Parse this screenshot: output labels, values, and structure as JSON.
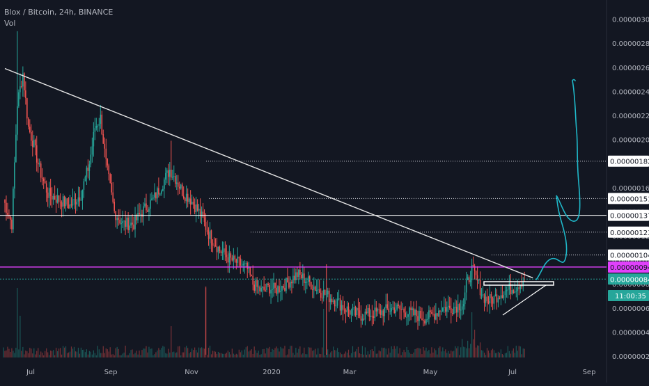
{
  "legend": {
    "symbol": "Blox / Bitcoin, 24h, BINANCE",
    "vol": "Vol"
  },
  "colors": {
    "background": "#131722",
    "up": "#26a69a",
    "down": "#ef5350",
    "trendline": "#e6e6e6",
    "magenta": "#e040fb",
    "teal_line": "#26a69a",
    "drawing": "#1fb8c9",
    "axis_text": "#b2b5be"
  },
  "chart_data": {
    "type": "candlestick",
    "symbol": "Blox / Bitcoin",
    "interval": "24h",
    "exchange": "BINANCE",
    "ylim": [
      1e-07,
      3.1e-06
    ],
    "y_ticks": [
      "0.00000020",
      "0.00000040",
      "0.00000060",
      "0.00000080",
      "0.00000100",
      "0.00000120",
      "0.00000140",
      "0.00000160",
      "0.00000180",
      "0.00000200",
      "0.00000220",
      "0.00000240",
      "0.00000260",
      "0.00000280",
      "0.00000300"
    ],
    "x_ticks": [
      "Jul",
      "Sep",
      "Nov",
      "2020",
      "Mar",
      "May",
      "Jul",
      "Sep"
    ],
    "anchors": [
      [
        0,
        1.5
      ],
      [
        6,
        1.3
      ],
      [
        10,
        2.3
      ],
      [
        14,
        2.55
      ],
      [
        18,
        2.1
      ],
      [
        22,
        1.95
      ],
      [
        26,
        1.75
      ],
      [
        32,
        1.55
      ],
      [
        40,
        1.5
      ],
      [
        48,
        1.45
      ],
      [
        56,
        1.55
      ],
      [
        62,
        1.8
      ],
      [
        66,
        2.1
      ],
      [
        70,
        2.18
      ],
      [
        74,
        1.8
      ],
      [
        80,
        1.4
      ],
      [
        86,
        1.3
      ],
      [
        94,
        1.3
      ],
      [
        100,
        1.4
      ],
      [
        108,
        1.5
      ],
      [
        114,
        1.62
      ],
      [
        120,
        1.75
      ],
      [
        124,
        1.68
      ],
      [
        130,
        1.55
      ],
      [
        134,
        1.52
      ],
      [
        138,
        1.45
      ],
      [
        142,
        1.38
      ],
      [
        148,
        1.22
      ],
      [
        156,
        1.08
      ],
      [
        164,
        1.0
      ],
      [
        170,
        0.97
      ],
      [
        176,
        0.92
      ],
      [
        180,
        0.8
      ],
      [
        186,
        0.74
      ],
      [
        192,
        0.77
      ],
      [
        196,
        0.75
      ],
      [
        204,
        0.8
      ],
      [
        212,
        0.88
      ],
      [
        220,
        0.82
      ],
      [
        226,
        0.76
      ],
      [
        234,
        0.7
      ],
      [
        240,
        0.66
      ],
      [
        246,
        0.6
      ],
      [
        252,
        0.56
      ],
      [
        258,
        0.54
      ],
      [
        264,
        0.55
      ],
      [
        270,
        0.56
      ],
      [
        276,
        0.58
      ],
      [
        282,
        0.6
      ],
      [
        288,
        0.58
      ],
      [
        292,
        0.56
      ],
      [
        298,
        0.54
      ],
      [
        304,
        0.52
      ],
      [
        308,
        0.53
      ],
      [
        312,
        0.56
      ],
      [
        316,
        0.6
      ],
      [
        322,
        0.6
      ],
      [
        328,
        0.62
      ],
      [
        332,
        0.64
      ],
      [
        334,
        0.78
      ],
      [
        338,
        0.92
      ],
      [
        342,
        0.82
      ],
      [
        346,
        0.7
      ],
      [
        350,
        0.66
      ],
      [
        354,
        0.68
      ],
      [
        358,
        0.72
      ],
      [
        362,
        0.74
      ],
      [
        366,
        0.76
      ],
      [
        370,
        0.78
      ],
      [
        374,
        0.82
      ],
      [
        376,
        0.84
      ]
    ],
    "spikes": [
      [
        10,
        2.9
      ],
      [
        12,
        2.55
      ],
      [
        66,
        2.18
      ],
      [
        121,
        1.99
      ],
      [
        124,
        1.72
      ],
      [
        338,
        1.01
      ]
    ],
    "horizontal_levels": [
      {
        "value": 1.82e-06,
        "label": "0.00000182",
        "style": "dotted"
      },
      {
        "value": 1.51e-06,
        "label": "0.00000151",
        "style": "dotted"
      },
      {
        "value": 1.37e-06,
        "label": "0.00000137",
        "style": "solid"
      },
      {
        "value": 1.23e-06,
        "label": "0.00000123",
        "style": "dotted"
      },
      {
        "value": 1.04e-06,
        "label": "0.00000104",
        "style": "dotted"
      },
      {
        "value": 9.4e-07,
        "label": "0.00000094",
        "style": "magenta"
      },
      {
        "value": 8.4e-07,
        "label": "0.00000084",
        "style": "teal"
      }
    ],
    "countdown": "11:00:35",
    "trendlines": [
      {
        "from": [
          1,
          2.59
        ],
        "to": [
          382,
          0.85
        ]
      }
    ]
  }
}
